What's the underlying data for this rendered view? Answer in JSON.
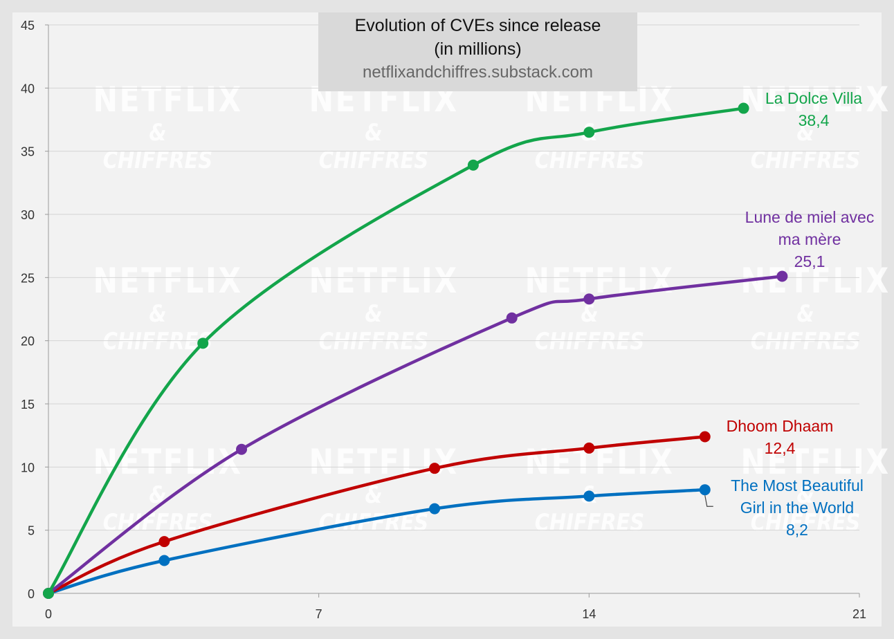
{
  "chart_data": {
    "type": "line",
    "title": "Evolution of CVEs since release",
    "subtitle": "(in millions)",
    "source": "netflixandchiffres.substack.com",
    "watermark": [
      "NETFLIX",
      "& CHIFFRES"
    ],
    "xlabel": "",
    "ylabel": "",
    "xlim": [
      0,
      21
    ],
    "ylim": [
      0,
      45
    ],
    "x_ticks": [
      0,
      7,
      14,
      21
    ],
    "y_ticks": [
      0,
      5,
      10,
      15,
      20,
      25,
      30,
      35,
      40,
      45
    ],
    "grid": "horizontal",
    "series": [
      {
        "name": "La Dolce Villa",
        "value_label": "38,4",
        "color": "#13a54b",
        "x": [
          0,
          4,
          11,
          14,
          18
        ],
        "y": [
          0,
          19.8,
          33.9,
          36.5,
          38.4
        ]
      },
      {
        "name": "Lune de miel avec ma mère",
        "name_lines": [
          "Lune de miel avec",
          "ma mère"
        ],
        "value_label": "25,1",
        "color": "#7030a0",
        "x": [
          0,
          5,
          12,
          14,
          19
        ],
        "y": [
          0,
          11.4,
          21.8,
          23.3,
          25.1
        ]
      },
      {
        "name": "Dhoom Dhaam",
        "value_label": "12,4",
        "color": "#c00000",
        "x": [
          0,
          3,
          10,
          14,
          17
        ],
        "y": [
          0,
          4.1,
          9.9,
          11.5,
          12.4
        ]
      },
      {
        "name": "The Most Beautiful Girl in the World",
        "name_lines": [
          "The Most Beautiful",
          "Girl in the World"
        ],
        "value_label": "8,2",
        "color": "#0070c0",
        "x": [
          0,
          3,
          10,
          14,
          17
        ],
        "y": [
          0,
          2.6,
          6.7,
          7.7,
          8.2
        ]
      }
    ]
  }
}
